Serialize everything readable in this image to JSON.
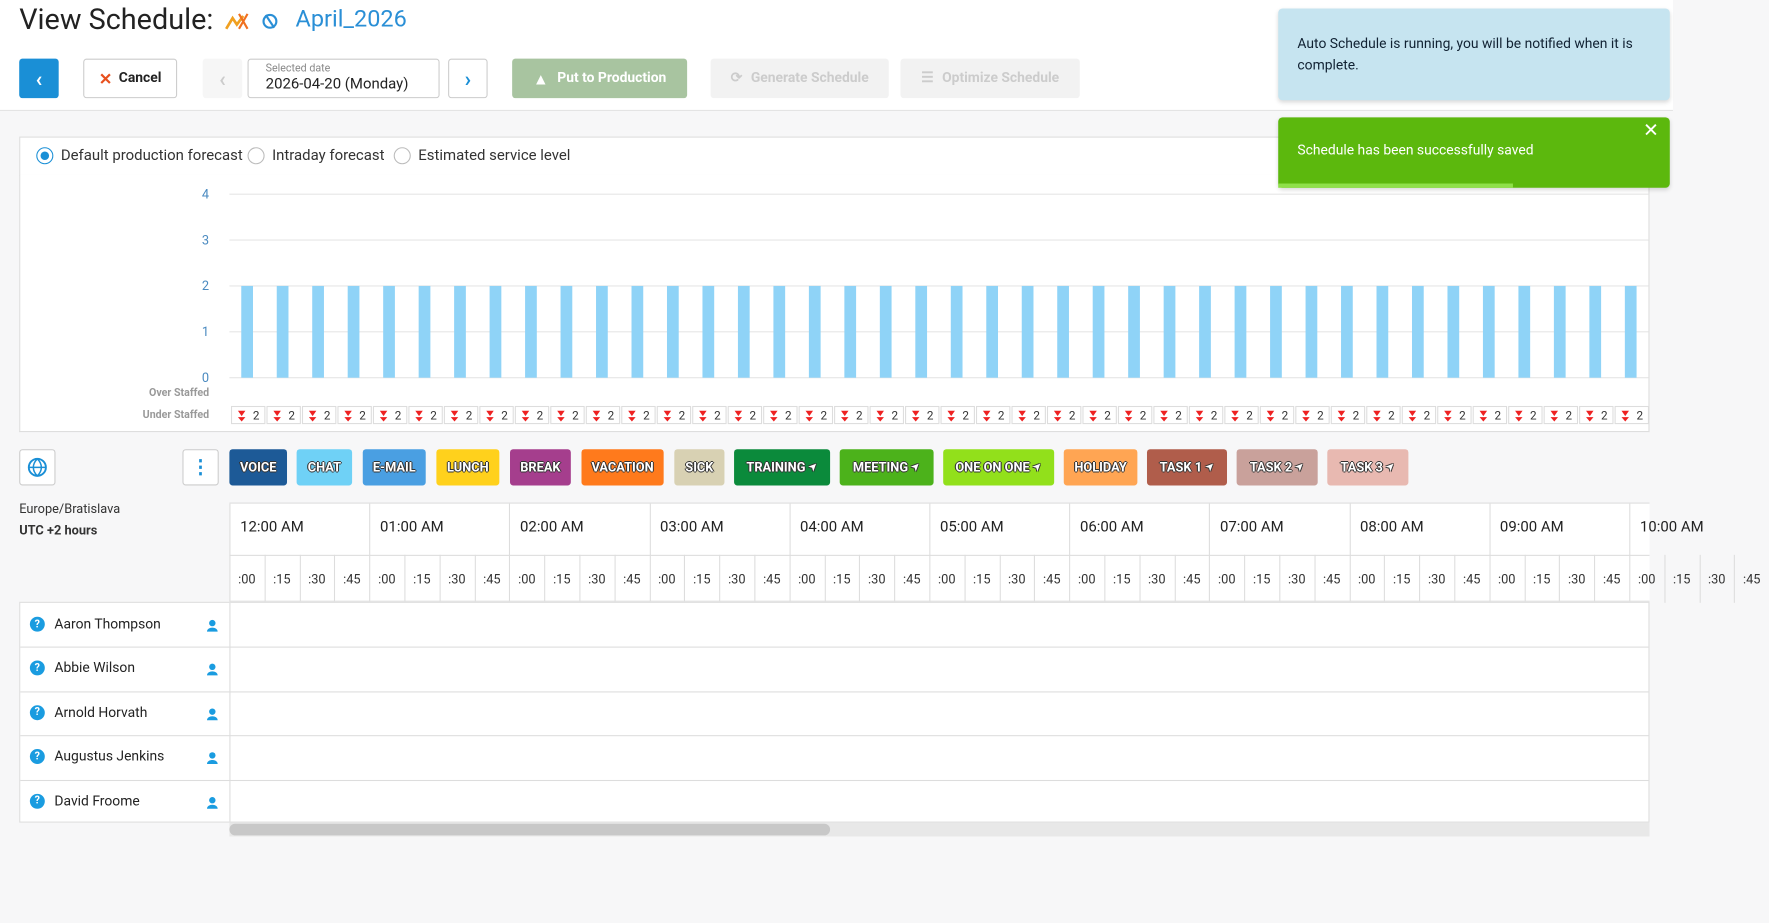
{
  "header": {
    "title": "View Schedule:",
    "schedule_name": "April_2026"
  },
  "toolbar": {
    "cancel": "Cancel",
    "selected_date_label": "Selected date",
    "selected_date": "2026-04-20 (Monday)",
    "put_to_production": "Put to Production",
    "generate_schedule": "Generate Schedule",
    "optimize_schedule": "Optimize Schedule"
  },
  "notifications": [
    "Auto Schedule is running, you will be notified when it is complete.",
    "Schedule has been successfully saved"
  ],
  "forecast_options": {
    "options": [
      "Default production forecast",
      "Intraday forecast",
      "Estimated service level"
    ],
    "selected": 0
  },
  "chart_data": {
    "type": "bar",
    "color": "#8fd3f7",
    "ylim": [
      0,
      4
    ],
    "yticks": [
      0,
      1,
      2,
      3,
      4
    ],
    "grid": true,
    "over_staffed_label": "Over Staffed",
    "under_staffed_label": "Under Staffed",
    "values": [
      2,
      2,
      2,
      2,
      2,
      2,
      2,
      2,
      2,
      2,
      2,
      2,
      2,
      2,
      2,
      2,
      2,
      2,
      2,
      2,
      2,
      2,
      2,
      2,
      2,
      2,
      2,
      2,
      2,
      2,
      2,
      2,
      2,
      2,
      2,
      2,
      2,
      2,
      2,
      2
    ],
    "under_staffed": [
      2,
      2,
      2,
      2,
      2,
      2,
      2,
      2,
      2,
      2,
      2,
      2,
      2,
      2,
      2,
      2,
      2,
      2,
      2,
      2,
      2,
      2,
      2,
      2,
      2,
      2,
      2,
      2,
      2,
      2,
      2,
      2,
      2,
      2,
      2,
      2,
      2,
      2,
      2,
      2
    ]
  },
  "activities": [
    {
      "label": "VOICE",
      "color": "#1d5a97",
      "pinned": false
    },
    {
      "label": "CHAT",
      "color": "#6fd1f6",
      "pinned": false
    },
    {
      "label": "E-MAIL",
      "color": "#4a9fe2",
      "pinned": false
    },
    {
      "label": "LUNCH",
      "color": "#ffd11c",
      "pinned": false
    },
    {
      "label": "BREAK",
      "color": "#a53e8d",
      "pinned": false
    },
    {
      "label": "VACATION",
      "color": "#ff7a1c",
      "pinned": false
    },
    {
      "label": "SICK",
      "color": "#d8d1b3",
      "pinned": false
    },
    {
      "label": "TRAINING",
      "color": "#0b8a3b",
      "pinned": true
    },
    {
      "label": "MEETING",
      "color": "#4cb21b",
      "pinned": true
    },
    {
      "label": "ONE ON ONE",
      "color": "#92e01b",
      "pinned": true
    },
    {
      "label": "HOLIDAY",
      "color": "#ffa553",
      "pinned": false
    },
    {
      "label": "TASK 1",
      "color": "#b05d4b",
      "pinned": true
    },
    {
      "label": "TASK 2",
      "color": "#c9a19b",
      "pinned": true
    },
    {
      "label": "TASK 3",
      "color": "#e8b9b1",
      "pinned": true
    }
  ],
  "timezone": {
    "name": "Europe/Bratislava",
    "offset": "UTC +2 hours"
  },
  "timeline": {
    "hours": [
      "12:00 AM",
      "01:00 AM",
      "02:00 AM",
      "03:00 AM",
      "04:00 AM",
      "05:00 AM",
      "06:00 AM",
      "07:00 AM",
      "08:00 AM",
      "09:00 AM",
      "10:00 AM"
    ],
    "minutes": [
      ":00",
      ":15",
      ":30",
      ":45"
    ]
  },
  "agents": [
    "Aaron Thompson",
    "Abbie Wilson",
    "Arnold Horvath",
    "Augustus Jenkins",
    "David Froome"
  ]
}
